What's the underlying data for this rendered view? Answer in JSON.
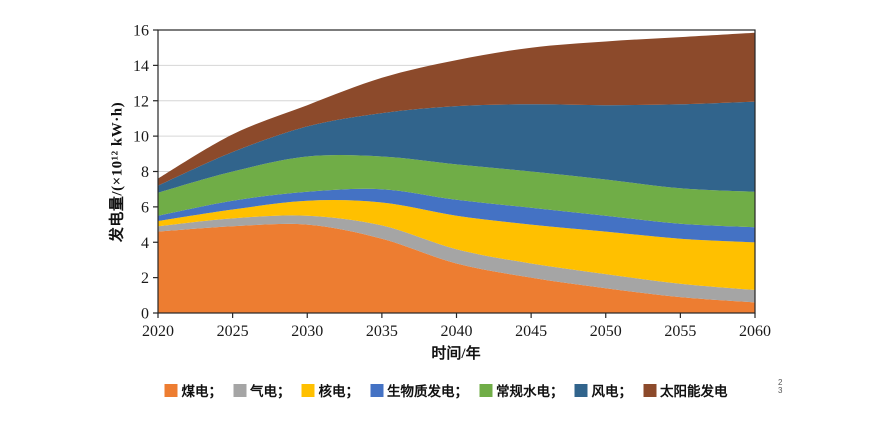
{
  "figure": {
    "background": "#ffffff"
  },
  "artifact": {
    "line1": "2",
    "line2": "3"
  },
  "chart_data": {
    "type": "area",
    "stacked": true,
    "title": "",
    "xlabel": "时间/年",
    "ylabel": "发电量/(×10¹² kW·h)",
    "xlim": [
      2020,
      2060
    ],
    "ylim": [
      0,
      16
    ],
    "ytick_step": 2,
    "grid": "horizontal-light-gray",
    "legend_position": "bottom",
    "x": [
      2020,
      2025,
      2030,
      2035,
      2040,
      2045,
      2050,
      2055,
      2060
    ],
    "series": [
      {
        "id": "coal",
        "name": "煤电",
        "legend_label": "煤电；",
        "color": "#ED7D31",
        "values": [
          4.6,
          4.9,
          5.0,
          4.2,
          2.8,
          2.0,
          1.4,
          0.9,
          0.6
        ]
      },
      {
        "id": "gas",
        "name": "气电",
        "legend_label": "气电；",
        "color": "#A5A5A5",
        "values": [
          0.3,
          0.45,
          0.5,
          0.75,
          0.8,
          0.8,
          0.8,
          0.75,
          0.7
        ]
      },
      {
        "id": "nuclear",
        "name": "核电",
        "legend_label": "核电；",
        "color": "#FFC000",
        "values": [
          0.3,
          0.5,
          0.85,
          1.3,
          1.9,
          2.2,
          2.4,
          2.55,
          2.7
        ]
      },
      {
        "id": "biomass",
        "name": "生物质发电",
        "legend_label": "生物质发电；",
        "color": "#4472C4",
        "values": [
          0.3,
          0.5,
          0.5,
          0.75,
          0.9,
          0.95,
          0.9,
          0.85,
          0.85
        ]
      },
      {
        "id": "hydro",
        "name": "常规水电",
        "legend_label": "常规水电；",
        "color": "#70AD47",
        "values": [
          1.3,
          1.65,
          2.0,
          1.85,
          2.0,
          2.05,
          2.05,
          2.0,
          2.0
        ]
      },
      {
        "id": "wind",
        "name": "风电",
        "legend_label": "风电；",
        "color": "#31648C",
        "values": [
          0.4,
          1.1,
          1.7,
          2.45,
          3.3,
          3.8,
          4.2,
          4.75,
          5.1
        ]
      },
      {
        "id": "solar",
        "name": "太阳能发电",
        "legend_label": "太阳能发电",
        "color": "#8C4A2B",
        "values": [
          0.4,
          1.0,
          1.2,
          2.0,
          2.6,
          3.2,
          3.6,
          3.8,
          3.9
        ]
      }
    ]
  }
}
